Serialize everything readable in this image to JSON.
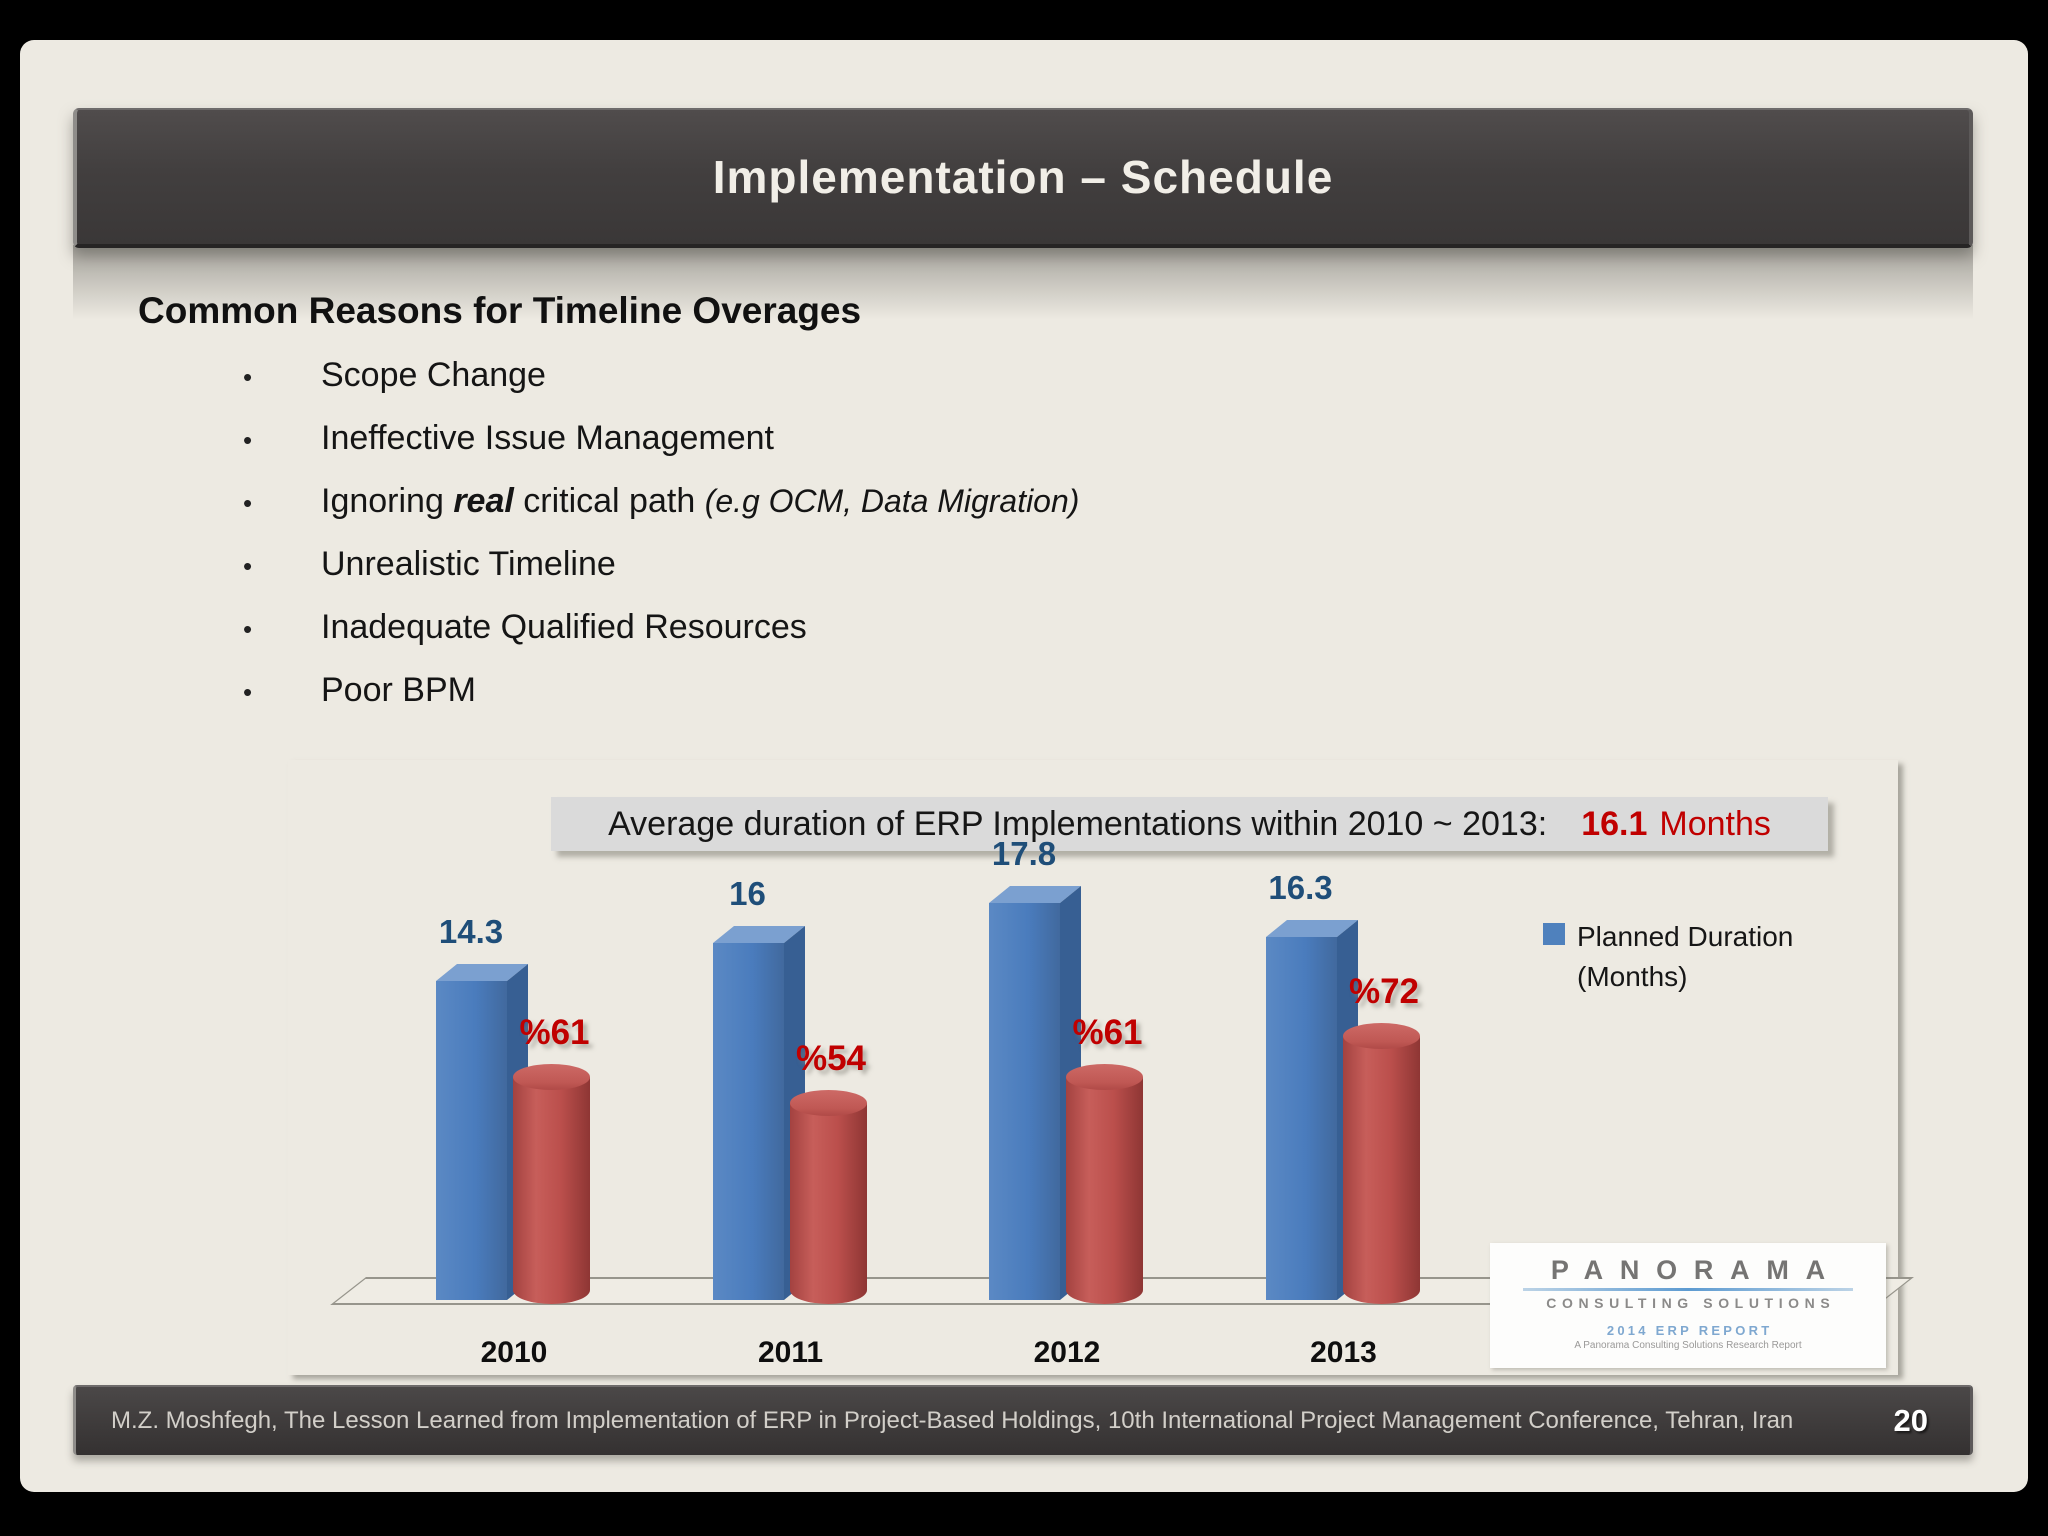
{
  "slide": {
    "title": "Implementation – Schedule",
    "heading": "Common Reasons for Timeline Overages",
    "bullet_char": "•",
    "bullets": [
      {
        "text": "Scope Change"
      },
      {
        "text": "Ineffective Issue Management"
      },
      {
        "segments": {
          "a": "Ignoring ",
          "b": "real",
          "c": " critical path ",
          "d": "(e.g OCM, Data Migration)"
        }
      },
      {
        "text": "Unrealistic Timeline"
      },
      {
        "text": "Inadequate Qualified Resources"
      },
      {
        "text": "Poor BPM"
      }
    ]
  },
  "chart_data": {
    "type": "bar",
    "banner": {
      "text": "Average duration of ERP Implementations within 2010 ~ 2013:",
      "value": "16.1",
      "suffix": "Months"
    },
    "categories": [
      "2010",
      "2011",
      "2012",
      "2013"
    ],
    "series": [
      {
        "name": "Planned Duration (Months)",
        "values": [
          14.3,
          16,
          17.8,
          16.3
        ],
        "labels": [
          "14.3",
          "16",
          "17.8",
          "16.3"
        ],
        "color": "#4F81BD",
        "label_color": "#1F4E79",
        "shape": "box"
      },
      {
        "values": [
          61,
          54,
          61,
          72
        ],
        "labels": [
          "%61",
          "%54",
          "%61",
          "%72"
        ],
        "color": "#C0504D",
        "label_color": "#C00000",
        "shape": "cylinder"
      }
    ],
    "legend_line1": "Planned Duration",
    "legend_line2": "(Months)",
    "legend_position": "right",
    "grid": false,
    "xlabel": "",
    "ylabel": ""
  },
  "logo": {
    "line1": "PANORAMA",
    "line2": "CONSULTING SOLUTIONS",
    "line3": "2014 ERP REPORT",
    "line4": "A Panorama Consulting Solutions Research Report"
  },
  "footer": {
    "text": "M.Z. Moshfegh, The Lesson Learned from Implementation of ERP in Project-Based Holdings, 10th International Project Management Conference, Tehran, Iran",
    "page": "20"
  }
}
